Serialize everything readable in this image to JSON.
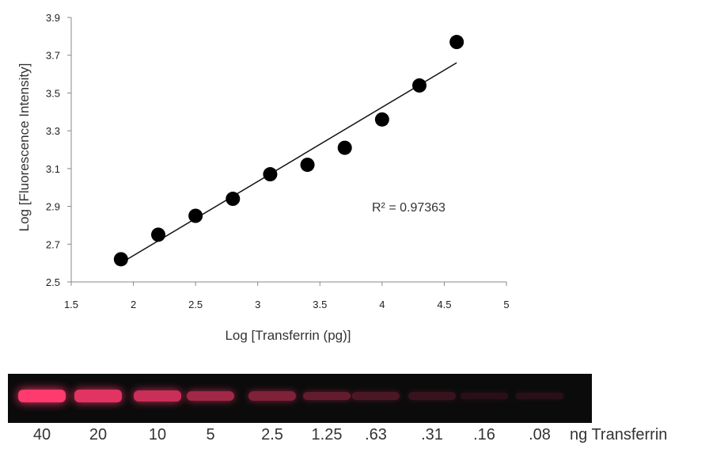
{
  "chart_data": {
    "type": "scatter",
    "xlabel": "Log [Transferrin (pg)]",
    "ylabel": "Log [Fluorescence Intensity]",
    "xlim": [
      1.5,
      5
    ],
    "ylim": [
      2.5,
      3.9
    ],
    "x_ticks": [
      "1.5",
      "2",
      "2.5",
      "3",
      "3.5",
      "4",
      "4.5",
      "5"
    ],
    "y_ticks": [
      "2.5",
      "2.7",
      "2.9",
      "3.1",
      "3.3",
      "3.5",
      "3.7",
      "3.9"
    ],
    "x_tick_values": [
      1.5,
      2,
      2.5,
      3,
      3.5,
      4,
      4.5,
      5
    ],
    "y_tick_values": [
      2.5,
      2.7,
      2.9,
      3.1,
      3.3,
      3.5,
      3.7,
      3.9
    ],
    "points": [
      {
        "x": 1.9,
        "y": 2.62
      },
      {
        "x": 2.2,
        "y": 2.75
      },
      {
        "x": 2.5,
        "y": 2.85
      },
      {
        "x": 2.8,
        "y": 2.94
      },
      {
        "x": 3.1,
        "y": 3.07
      },
      {
        "x": 3.4,
        "y": 3.12
      },
      {
        "x": 3.7,
        "y": 3.21
      },
      {
        "x": 4.0,
        "y": 3.36
      },
      {
        "x": 4.3,
        "y": 3.54
      },
      {
        "x": 4.6,
        "y": 3.77
      }
    ],
    "trendline": {
      "x": [
        1.9,
        4.6
      ],
      "y": [
        2.6,
        3.66
      ]
    },
    "annotation": "R² = 0.97363",
    "grid": false,
    "marker_color": "#000000"
  },
  "gel": {
    "lanes": [
      {
        "label": "40",
        "intensity": 1.0
      },
      {
        "label": "20",
        "intensity": 0.88
      },
      {
        "label": "10",
        "intensity": 0.78
      },
      {
        "label": "5",
        "intensity": 0.62
      },
      {
        "label": "2.5",
        "intensity": 0.48
      },
      {
        "label": "1.25",
        "intensity": 0.36
      },
      {
        "label": ".63",
        "intensity": 0.26
      },
      {
        "label": ".31",
        "intensity": 0.18
      },
      {
        "label": ".16",
        "intensity": 0.12
      },
      {
        "label": ".08",
        "intensity": 0.08
      }
    ],
    "unit": "ng Transferrin",
    "band_color": "#ff3a6e"
  }
}
